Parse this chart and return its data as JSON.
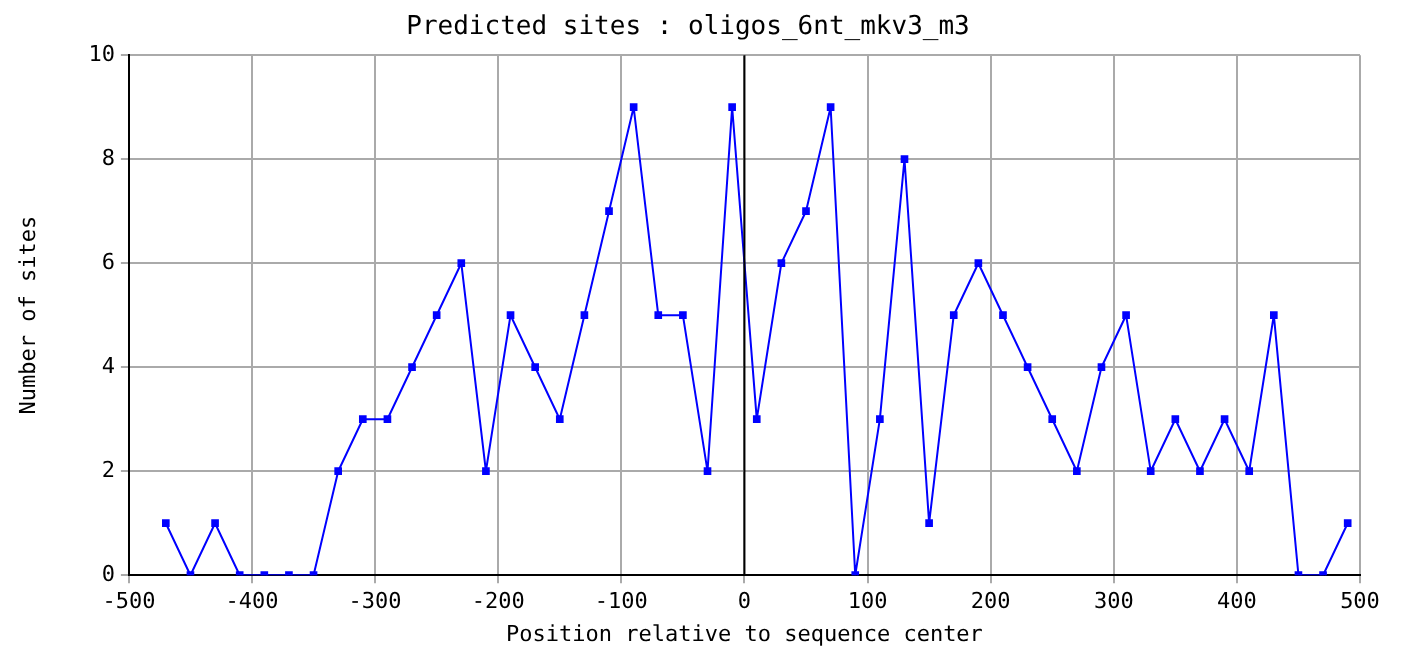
{
  "chart_data": {
    "type": "line",
    "title": "Predicted sites : oligos_6nt_mkv3_m3",
    "xlabel": "Position relative to sequence center",
    "ylabel": "Number of sites",
    "x": [
      -470,
      -450,
      -430,
      -410,
      -390,
      -370,
      -350,
      -330,
      -310,
      -290,
      -270,
      -250,
      -230,
      -210,
      -190,
      -170,
      -150,
      -130,
      -110,
      -90,
      -70,
      -50,
      -30,
      -10,
      10,
      30,
      50,
      70,
      90,
      110,
      130,
      150,
      170,
      190,
      210,
      230,
      250,
      270,
      290,
      310,
      330,
      350,
      370,
      390,
      410,
      430,
      450,
      470,
      490
    ],
    "series": [
      {
        "color": "#0000ff",
        "values": [
          1,
          0,
          1,
          0,
          0,
          0,
          0,
          2,
          3,
          3,
          4,
          5,
          6,
          2,
          5,
          4,
          3,
          5,
          7,
          9,
          5,
          5,
          2,
          9,
          3,
          6,
          7,
          9,
          0,
          3,
          8,
          1,
          5,
          6,
          5,
          4,
          3,
          2,
          4,
          5,
          2,
          3,
          2,
          3,
          2,
          5,
          0,
          0,
          1
        ]
      }
    ],
    "xlim": [
      -500,
      500
    ],
    "xticks": [
      -500,
      -400,
      -300,
      -200,
      -100,
      0,
      100,
      200,
      300,
      400,
      500
    ],
    "ylim": [
      0,
      10
    ],
    "yticks": [
      0,
      2,
      4,
      6,
      8,
      10
    ],
    "ref_lines": [
      {
        "axis": "x",
        "value": 0,
        "color": "#000000"
      }
    ],
    "grid": true,
    "legend": false,
    "marker": "square",
    "line_style": "solid"
  }
}
